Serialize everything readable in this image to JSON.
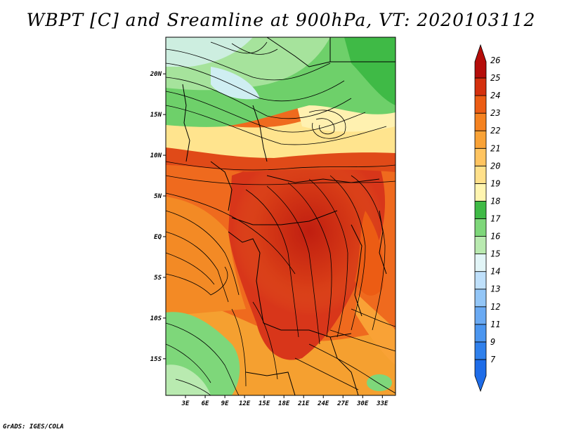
{
  "title": "WBPT [C] and Sreamline at 900hPa, VT: 2020103112",
  "credit": "GrADS: IGES/COLA",
  "map": {
    "lat_labels": [
      "20N",
      "15N",
      "10N",
      "5N",
      "EQ",
      "5S",
      "10S",
      "15S"
    ],
    "lon_labels": [
      "3E",
      "6E",
      "9E",
      "12E",
      "15E",
      "18E",
      "21E",
      "24E",
      "27E",
      "30E",
      "33E"
    ],
    "lat_values": [
      20,
      15,
      10,
      5,
      0,
      -5,
      -10,
      -15
    ],
    "lon_values": [
      3,
      6,
      9,
      12,
      15,
      18,
      21,
      24,
      27,
      30,
      33
    ],
    "lat_range": [
      -19.5,
      24.5
    ],
    "lon_range": [
      0,
      35
    ]
  },
  "colorbar": {
    "labels": [
      "7",
      "9",
      "11",
      "12",
      "13",
      "14",
      "15",
      "16",
      "17",
      "18",
      "19",
      "20",
      "21",
      "22",
      "23",
      "24",
      "25",
      "26"
    ],
    "colors": [
      "#1e6ce8",
      "#2f80ec",
      "#4b96f0",
      "#6aaaf3",
      "#93c6f7",
      "#bfe0fb",
      "#e2f5f7",
      "#b9eab0",
      "#7ed77a",
      "#3fba46",
      "#fff5b0",
      "#ffe08a",
      "#ffc460",
      "#f9a236",
      "#f58220",
      "#ec5c14",
      "#d4300e",
      "#b50d0a"
    ]
  }
}
